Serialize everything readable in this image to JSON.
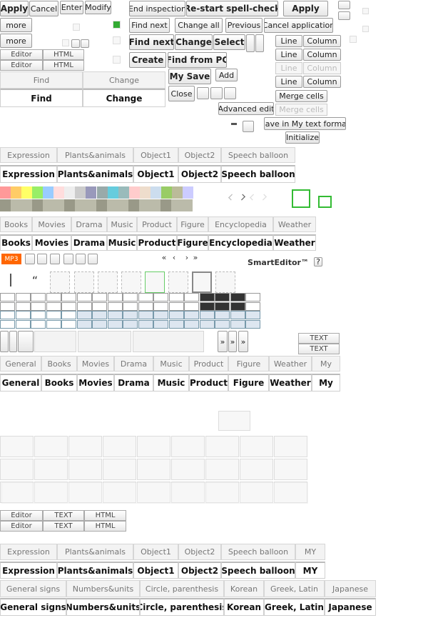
{
  "top_buttons": [
    "Apply",
    "Cancel",
    "Enter",
    "Modify"
  ],
  "more": [
    "more",
    "more"
  ],
  "mode_tabs": [
    [
      "Editor",
      "HTML"
    ],
    [
      "Editor",
      "HTML"
    ]
  ],
  "find_tabs": [
    [
      "Find",
      "Change"
    ],
    [
      "Find",
      "Change"
    ]
  ],
  "spell_buttons": [
    "End inspection",
    "Re-start spell-check",
    "Apply"
  ],
  "find_buttons": [
    "Find next",
    "Change all",
    "Previous",
    "Cancel application"
  ],
  "find_buttons_bold": [
    "Find next",
    "Change",
    "Select"
  ],
  "create_buttons": [
    "Create",
    "Find from PC"
  ],
  "save_buttons": [
    "My Save",
    "Add"
  ],
  "close": "Close",
  "table_buttons": [
    [
      "Line",
      "Column"
    ],
    [
      "Line",
      "Column"
    ],
    [
      "Line",
      "Column"
    ],
    [
      "Line",
      "Column"
    ]
  ],
  "merge": [
    "Merge cells",
    "Merge cells"
  ],
  "advanced": "Advanced edit",
  "save_format": "Save in My text format",
  "initialize": "Initialize",
  "emoticon_tabs": [
    [
      "Expression",
      "Plants&animals",
      "Object1",
      "Object2",
      "Speech balloon"
    ],
    [
      "Expression",
      "Plants&animals",
      "Object1",
      "Object2",
      "Speech balloon"
    ]
  ],
  "media_tabs": [
    [
      "Books",
      "Movies",
      "Drama",
      "Music",
      "Product",
      "Figure",
      "Encyclopedia",
      "Weather"
    ],
    [
      "Books",
      "Movies",
      "Drama",
      "Music",
      "Product",
      "Figure",
      "Encyclopedia",
      "Weather"
    ]
  ],
  "mp3": "MP3",
  "quote": "“",
  "pager": [
    "«",
    "‹",
    "›",
    "»"
  ],
  "brand": "SmartEditor™",
  "help": "?",
  "more_arrows": [
    "»",
    "»",
    "»"
  ],
  "text_buttons": [
    "TEXT",
    "TEXT"
  ],
  "search_tabs": [
    [
      "General",
      "Books",
      "Movies",
      "Drama",
      "Music",
      "Product",
      "Figure",
      "Weather",
      "My"
    ],
    [
      "General",
      "Books",
      "Movies",
      "Drama",
      "Music",
      "Product",
      "Figure",
      "Weather",
      "My"
    ]
  ],
  "mode_tabs2": [
    [
      "Editor",
      "TEXT",
      "HTML"
    ],
    [
      "Editor",
      "TEXT",
      "HTML"
    ]
  ],
  "emoticon_tabs2": [
    [
      "Expression",
      "Plants&animals",
      "Object1",
      "Object2",
      "Speech balloon",
      "MY"
    ],
    [
      "Expression",
      "Plants&animals",
      "Object1",
      "Object2",
      "Speech balloon",
      "MY"
    ]
  ],
  "symbol_tabs": [
    [
      "General signs",
      "Numbers&units",
      "Circle, parenthesis",
      "Korean",
      "Greek, Latin",
      "Japanese"
    ],
    [
      "General signs",
      "Numbers&units",
      "Circle, parenthesis",
      "Korean",
      "Greek, Latin",
      "Japanese"
    ]
  ]
}
